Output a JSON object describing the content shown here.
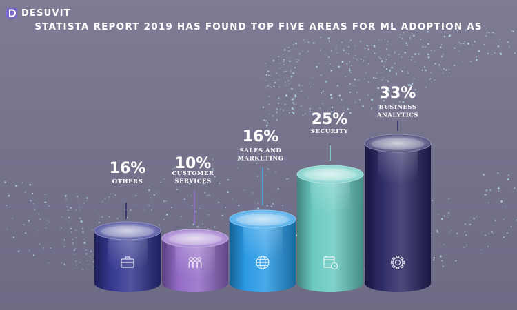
{
  "brand": {
    "name": "DESUVIT"
  },
  "headline": "STATISTA REPORT 2019 HAS FOUND TOP FIVE AREAS FOR ML ADOPTION AS",
  "chart_data": {
    "type": "bar",
    "categories": [
      "OTHERS",
      "CUSTOMER SERVICES",
      "SALES AND MARKETING",
      "SECURITY",
      "BUSINESS ANALYTICS"
    ],
    "values": [
      16,
      10,
      16,
      25,
      33
    ],
    "value_labels": [
      "16%",
      "10%",
      "16%",
      "25%",
      "33%"
    ],
    "icons": [
      "briefcase-icon",
      "team-icon",
      "globe-icon",
      "calendar-clock-icon",
      "gear-icon"
    ],
    "colors": [
      "#2b2d8a",
      "#8e64c4",
      "#2196e4",
      "#64c8c0",
      "#23215e"
    ]
  }
}
